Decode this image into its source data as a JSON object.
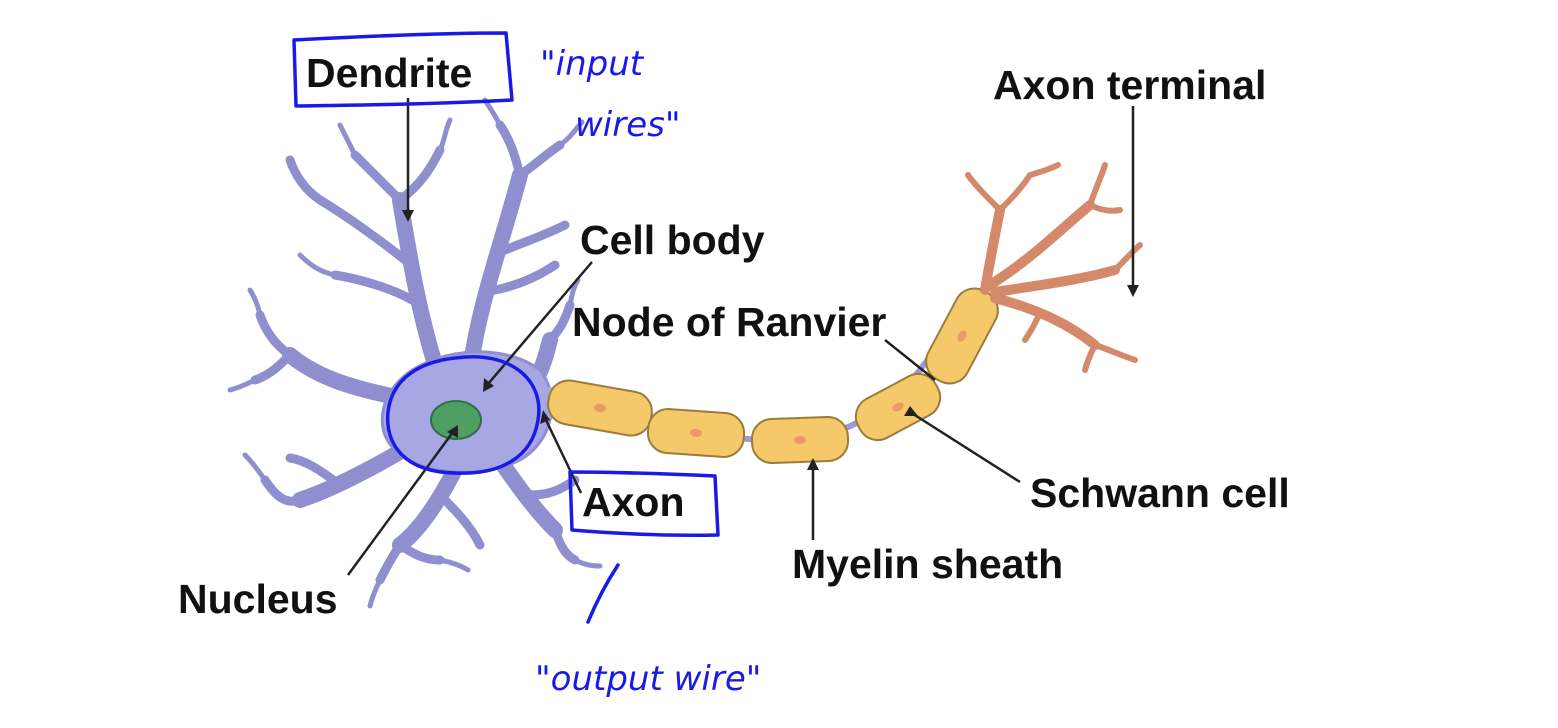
{
  "labels": {
    "dendrite": "Dendrite",
    "axon_terminal": "Axon terminal",
    "cell_body": "Cell body",
    "node_of_ranvier": "Node of Ranvier",
    "schwann_cell": "Schwann cell",
    "axon": "Axon",
    "myelin_sheath": "Myelin sheath",
    "nucleus": "Nucleus"
  },
  "annotations": {
    "input_line1": "\"input",
    "input_line2": "wires\"",
    "output": "\"output wire\""
  },
  "colors": {
    "cell": "#a7a7e4",
    "nucleus": "#4f9e64",
    "myelin": "#f5c86a",
    "terminal": "#d48a6a",
    "ink": "#1a1ae6"
  }
}
